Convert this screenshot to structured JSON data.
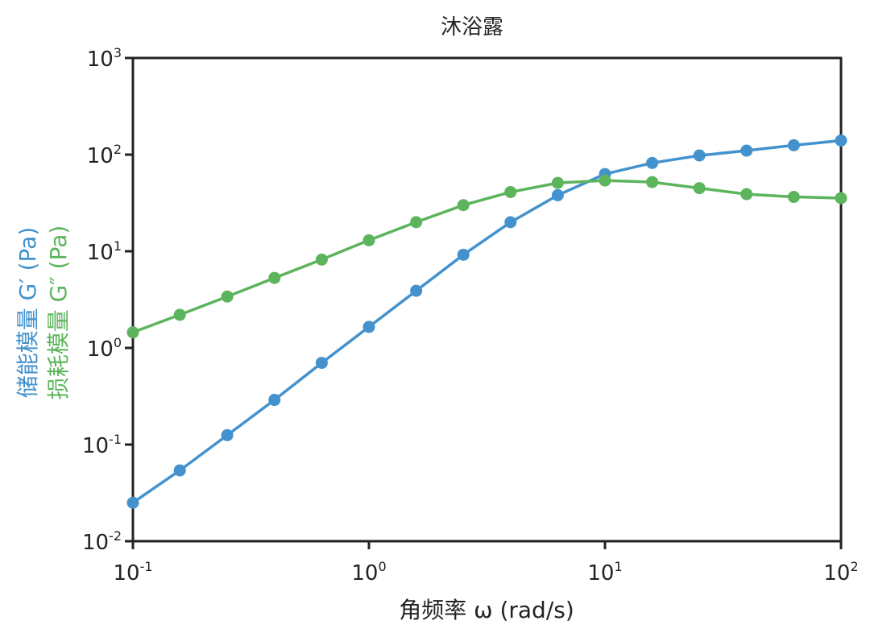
{
  "chart_data": {
    "type": "line",
    "title": "沐浴露",
    "xlabel": "角频率 ω (rad/s)",
    "ylabel_storage": "储能模量 G′ (Pa)",
    "ylabel_loss": "损耗模量 G″ (Pa)",
    "x_scale": "log",
    "y_scale": "log",
    "xlim": [
      0.1,
      100
    ],
    "ylim": [
      0.01,
      1000
    ],
    "grid": false,
    "legend": "none",
    "x_ticks": [
      {
        "base": "10",
        "exp": "-1",
        "value": 0.1
      },
      {
        "base": "10",
        "exp": "0",
        "value": 1
      },
      {
        "base": "10",
        "exp": "1",
        "value": 10
      },
      {
        "base": "10",
        "exp": "2",
        "value": 100
      }
    ],
    "y_ticks": [
      {
        "base": "10",
        "exp": "-2",
        "value": 0.01
      },
      {
        "base": "10",
        "exp": "-1",
        "value": 0.1
      },
      {
        "base": "10",
        "exp": "0",
        "value": 1
      },
      {
        "base": "10",
        "exp": "1",
        "value": 10
      },
      {
        "base": "10",
        "exp": "2",
        "value": 100
      },
      {
        "base": "10",
        "exp": "3",
        "value": 1000
      }
    ],
    "x": [
      0.1,
      0.158,
      0.251,
      0.398,
      0.631,
      1.0,
      1.585,
      2.512,
      3.981,
      6.31,
      10.0,
      15.85,
      25.12,
      39.81,
      63.1,
      100.0
    ],
    "series": [
      {
        "color": "#4392cd",
        "values": [
          0.025,
          0.054,
          0.125,
          0.29,
          0.7,
          1.65,
          3.9,
          9.2,
          20,
          38,
          63,
          82,
          98,
          110,
          125,
          140
        ]
      },
      {
        "color": "#5cb45c",
        "values": [
          1.45,
          2.2,
          3.4,
          5.3,
          8.2,
          13,
          20,
          30,
          41,
          51,
          54,
          52,
          45,
          39,
          36.5,
          35.5
        ]
      }
    ]
  }
}
